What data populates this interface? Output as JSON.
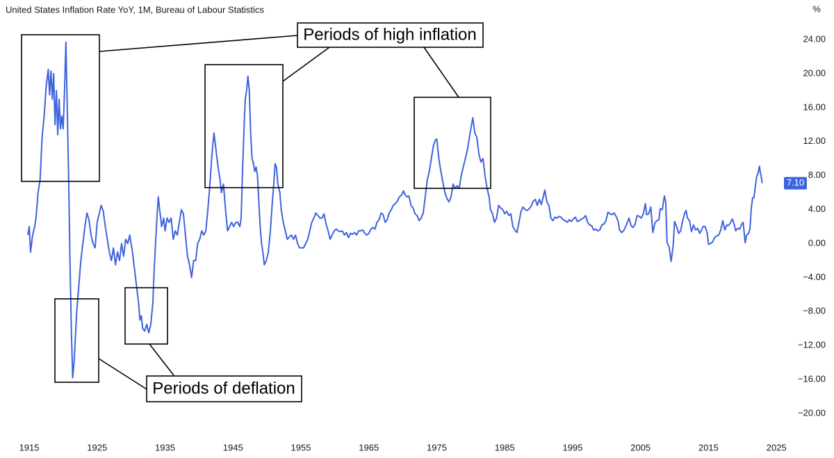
{
  "chart_data": {
    "type": "line",
    "title": "United States Inflation Rate YoY, 1M, Bureau of Labour Statistics",
    "y_unit": "%",
    "color": "#3d63dd",
    "grid": false,
    "xlim": [
      1910.7,
      2025.8
    ],
    "xticks": [
      1915,
      1925,
      1935,
      1945,
      1955,
      1965,
      1975,
      1985,
      1995,
      2005,
      2015,
      2025
    ],
    "ylim": [
      -22.45,
      28.66
    ],
    "yticks": [
      {
        "value": 24,
        "label": "24.00"
      },
      {
        "value": 20,
        "label": "20.00"
      },
      {
        "value": 16,
        "label": "16.00"
      },
      {
        "value": 12,
        "label": "12.00"
      },
      {
        "value": 8,
        "label": "8.00"
      },
      {
        "value": 4,
        "label": "4.00"
      },
      {
        "value": 0,
        "label": "0.00"
      },
      {
        "value": -4,
        "label": "−4.00"
      },
      {
        "value": -8,
        "label": "−8.00"
      },
      {
        "value": -12,
        "label": "−12.00"
      },
      {
        "value": -16,
        "label": "−16.00"
      },
      {
        "value": -20,
        "label": "−20.00"
      }
    ],
    "last_value_label": "7.10",
    "annotations": [
      "Periods of high inflation",
      "Periods of deflation"
    ],
    "x": [
      1914.8,
      1915.0,
      1915.2,
      1915.5,
      1915.8,
      1916.0,
      1916.3,
      1916.6,
      1916.9,
      1917.2,
      1917.5,
      1917.8,
      1918.0,
      1918.2,
      1918.4,
      1918.6,
      1918.8,
      1919.0,
      1919.2,
      1919.4,
      1919.6,
      1919.8,
      1920.0,
      1920.2,
      1920.4,
      1920.6,
      1920.8,
      1921.0,
      1921.2,
      1921.4,
      1921.6,
      1921.8,
      1922.0,
      1922.3,
      1922.6,
      1922.9,
      1923.2,
      1923.5,
      1923.8,
      1924.1,
      1924.4,
      1924.7,
      1925.0,
      1925.3,
      1925.6,
      1925.9,
      1926.2,
      1926.5,
      1926.8,
      1927.1,
      1927.4,
      1927.7,
      1928.0,
      1928.3,
      1928.6,
      1928.9,
      1929.2,
      1929.5,
      1929.8,
      1930.0,
      1930.2,
      1930.5,
      1930.8,
      1931.1,
      1931.3,
      1931.5,
      1931.7,
      1932.0,
      1932.3,
      1932.6,
      1932.9,
      1933.2,
      1933.4,
      1933.6,
      1933.8,
      1934.0,
      1934.2,
      1934.5,
      1934.8,
      1935.0,
      1935.3,
      1935.6,
      1935.9,
      1936.2,
      1936.5,
      1936.8,
      1937.1,
      1937.4,
      1937.7,
      1938.0,
      1938.3,
      1938.6,
      1938.9,
      1939.2,
      1939.5,
      1939.8,
      1940.1,
      1940.4,
      1940.7,
      1941.0,
      1941.3,
      1941.6,
      1941.9,
      1942.2,
      1942.5,
      1942.8,
      1943.1,
      1943.3,
      1943.6,
      1943.9,
      1944.2,
      1944.5,
      1944.8,
      1945.1,
      1945.4,
      1945.7,
      1946.0,
      1946.2,
      1946.4,
      1946.6,
      1946.8,
      1947.0,
      1947.2,
      1947.4,
      1947.6,
      1947.8,
      1948.0,
      1948.2,
      1948.4,
      1948.6,
      1948.8,
      1949.0,
      1949.2,
      1949.4,
      1949.6,
      1949.9,
      1950.2,
      1950.5,
      1950.8,
      1951.0,
      1951.2,
      1951.4,
      1951.6,
      1951.9,
      1952.1,
      1952.4,
      1952.7,
      1953.0,
      1953.3,
      1953.6,
      1953.9,
      1954.2,
      1954.5,
      1954.8,
      1955.1,
      1955.4,
      1955.7,
      1956.0,
      1956.3,
      1956.6,
      1956.9,
      1957.2,
      1957.5,
      1957.8,
      1958.1,
      1958.4,
      1958.7,
      1959.0,
      1959.3,
      1959.6,
      1959.9,
      1960.2,
      1960.5,
      1960.8,
      1961.1,
      1961.4,
      1961.7,
      1962.0,
      1962.3,
      1962.6,
      1962.9,
      1963.2,
      1963.5,
      1963.8,
      1964.1,
      1964.4,
      1964.7,
      1965.0,
      1965.3,
      1965.6,
      1965.9,
      1966.2,
      1966.5,
      1966.8,
      1967.1,
      1967.4,
      1967.7,
      1968.0,
      1968.3,
      1968.6,
      1968.9,
      1969.2,
      1969.5,
      1969.8,
      1970.1,
      1970.3,
      1970.6,
      1970.9,
      1971.2,
      1971.5,
      1971.8,
      1972.1,
      1972.4,
      1972.7,
      1973.0,
      1973.3,
      1973.6,
      1973.9,
      1974.2,
      1974.5,
      1974.8,
      1975.0,
      1975.3,
      1975.6,
      1975.9,
      1976.2,
      1976.5,
      1976.8,
      1977.1,
      1977.4,
      1977.7,
      1978.0,
      1978.3,
      1978.6,
      1978.9,
      1979.2,
      1979.5,
      1979.8,
      1980.1,
      1980.3,
      1980.6,
      1980.9,
      1981.2,
      1981.5,
      1981.8,
      1982.1,
      1982.4,
      1982.7,
      1982.9,
      1983.2,
      1983.5,
      1983.8,
      1984.1,
      1984.4,
      1984.7,
      1985.0,
      1985.3,
      1985.6,
      1985.9,
      1986.2,
      1986.5,
      1986.8,
      1987.1,
      1987.4,
      1987.7,
      1988.0,
      1988.3,
      1988.6,
      1988.9,
      1989.2,
      1989.5,
      1989.8,
      1990.1,
      1990.4,
      1990.7,
      1990.9,
      1991.2,
      1991.5,
      1991.8,
      1992.1,
      1992.4,
      1992.7,
      1993.0,
      1993.3,
      1993.6,
      1993.9,
      1994.2,
      1994.5,
      1994.8,
      1995.1,
      1995.4,
      1995.7,
      1996.0,
      1996.3,
      1996.6,
      1996.9,
      1997.2,
      1997.5,
      1997.8,
      1998.1,
      1998.4,
      1998.7,
      1999.0,
      1999.3,
      1999.6,
      1999.9,
      2000.2,
      2000.5,
      2000.8,
      2001.1,
      2001.4,
      2001.7,
      2001.9,
      2002.2,
      2002.5,
      2002.8,
      2003.1,
      2003.3,
      2003.6,
      2003.9,
      2004.2,
      2004.5,
      2004.8,
      2005.1,
      2005.4,
      2005.7,
      2005.9,
      2006.2,
      2006.5,
      2006.8,
      2007.1,
      2007.4,
      2007.7,
      2007.9,
      2008.2,
      2008.5,
      2008.7,
      2008.9,
      2009.2,
      2009.5,
      2009.8,
      2010.0,
      2010.3,
      2010.6,
      2010.9,
      2011.2,
      2011.5,
      2011.7,
      2011.9,
      2012.2,
      2012.5,
      2012.8,
      2013.1,
      2013.4,
      2013.7,
      2013.9,
      2014.2,
      2014.5,
      2014.8,
      2015.0,
      2015.3,
      2015.6,
      2015.9,
      2016.2,
      2016.5,
      2016.8,
      2017.1,
      2017.4,
      2017.7,
      2017.9,
      2018.2,
      2018.5,
      2018.8,
      2019.0,
      2019.3,
      2019.6,
      2019.9,
      2020.1,
      2020.4,
      2020.6,
      2020.9,
      2021.1,
      2021.3,
      2021.5,
      2021.7,
      2021.9,
      2022.1,
      2022.3,
      2022.5,
      2022.6,
      2022.8,
      2022.9
    ],
    "values": [
      1.0,
      2.0,
      -1.0,
      1.0,
      2.0,
      3.0,
      6.0,
      7.5,
      12.5,
      15.0,
      18.5,
      20.5,
      17.5,
      20.3,
      17.0,
      20.0,
      14.0,
      18.0,
      12.8,
      17.0,
      13.5,
      15.0,
      13.5,
      18.0,
      23.7,
      16.0,
      8.0,
      -2.0,
      -10.0,
      -15.8,
      -14.0,
      -11.0,
      -8.0,
      -5.0,
      -2.0,
      0.0,
      2.0,
      3.6,
      2.8,
      1.0,
      0.0,
      -0.5,
      2.5,
      3.5,
      4.5,
      3.8,
      2.0,
      0.5,
      -1.0,
      -2.0,
      -0.5,
      -2.5,
      -1.0,
      -2.0,
      0.0,
      -1.5,
      0.5,
      0.0,
      1.0,
      0.0,
      -1.0,
      -3.0,
      -5.0,
      -7.0,
      -9.0,
      -8.5,
      -10.0,
      -10.3,
      -9.5,
      -10.5,
      -9.5,
      -7.0,
      -3.0,
      0.0,
      3.0,
      5.5,
      4.0,
      2.0,
      3.0,
      1.5,
      3.0,
      2.5,
      3.0,
      0.5,
      1.5,
      1.0,
      2.5,
      4.0,
      3.5,
      1.0,
      -1.5,
      -2.5,
      -4.0,
      -2.0,
      -2.0,
      0.0,
      0.5,
      1.5,
      1.0,
      1.5,
      4.0,
      7.0,
      10.5,
      13.0,
      11.0,
      9.0,
      7.5,
      6.0,
      7.0,
      4.0,
      1.5,
      2.0,
      2.5,
      2.0,
      2.5,
      2.5,
      2.0,
      3.0,
      8.5,
      13.0,
      17.0,
      18.0,
      19.7,
      18.0,
      13.0,
      10.0,
      9.5,
      8.5,
      9.0,
      8.0,
      5.0,
      2.0,
      0.0,
      -1.0,
      -2.5,
      -2.0,
      -1.0,
      1.5,
      5.0,
      7.0,
      9.4,
      9.0,
      7.0,
      6.0,
      4.0,
      2.5,
      1.5,
      0.5,
      0.8,
      1.0,
      0.5,
      1.0,
      0.0,
      -0.5,
      -0.5,
      -0.5,
      0.0,
      0.5,
      1.5,
      2.5,
      3.0,
      3.6,
      3.3,
      3.0,
      3.0,
      3.5,
      2.3,
      1.5,
      0.5,
      1.0,
      1.5,
      1.7,
      1.5,
      1.4,
      1.5,
      1.0,
      1.3,
      0.7,
      1.2,
      1.1,
      1.3,
      1.0,
      1.5,
      1.5,
      1.6,
      1.2,
      1.0,
      1.2,
      1.7,
      1.9,
      1.7,
      2.5,
      2.8,
      3.6,
      3.4,
      2.5,
      2.8,
      3.6,
      4.0,
      4.5,
      4.7,
      5.0,
      5.5,
      5.7,
      6.2,
      5.8,
      5.5,
      5.6,
      4.5,
      4.2,
      3.5,
      3.3,
      2.7,
      3.0,
      3.6,
      5.5,
      7.5,
      8.5,
      10.0,
      11.5,
      12.2,
      12.3,
      10.0,
      8.5,
      7.2,
      6.0,
      5.3,
      4.9,
      5.5,
      7.0,
      6.5,
      6.8,
      6.5,
      8.0,
      9.0,
      10.0,
      11.0,
      12.5,
      13.9,
      14.8,
      13.0,
      12.5,
      10.5,
      9.6,
      10.0,
      8.0,
      6.5,
      5.5,
      4.0,
      3.5,
      2.5,
      3.0,
      4.5,
      4.2,
      4.0,
      3.5,
      3.8,
      3.3,
      3.5,
      2.0,
      1.6,
      1.3,
      2.5,
      3.8,
      4.3,
      4.0,
      3.9,
      4.1,
      4.4,
      5.0,
      5.2,
      4.5,
      5.2,
      4.6,
      5.6,
      6.3,
      4.9,
      4.5,
      3.0,
      2.7,
      3.1,
      3.0,
      3.2,
      3.1,
      2.8,
      2.7,
      2.5,
      2.8,
      2.6,
      2.9,
      3.1,
      2.6,
      2.7,
      2.9,
      3.0,
      3.3,
      2.5,
      2.2,
      2.1,
      1.6,
      1.7,
      1.5,
      1.6,
      2.2,
      2.3,
      2.7,
      3.7,
      3.5,
      3.4,
      3.6,
      3.2,
      2.6,
      1.6,
      1.3,
      1.5,
      2.0,
      2.6,
      3.0,
      2.1,
      1.9,
      2.3,
      3.3,
      3.2,
      3.0,
      3.5,
      4.7,
      3.4,
      3.5,
      4.3,
      1.3,
      2.4,
      2.7,
      2.8,
      4.1,
      4.0,
      5.6,
      4.9,
      0.1,
      -0.4,
      -2.1,
      -0.2,
      2.6,
      2.0,
      1.2,
      1.5,
      2.7,
      3.6,
      3.9,
      3.0,
      2.7,
      1.4,
      2.2,
      1.6,
      1.8,
      1.2,
      1.5,
      2.0,
      2.0,
      1.3,
      -0.1,
      0.0,
      0.2,
      0.7,
      0.9,
      1.0,
      1.6,
      2.7,
      1.6,
      2.2,
      2.1,
      2.4,
      2.9,
      2.2,
      1.5,
      1.8,
      1.7,
      2.3,
      2.5,
      0.1,
      1.0,
      1.2,
      1.7,
      4.2,
      5.4,
      5.4,
      6.8,
      7.9,
      8.3,
      9.1,
      8.5,
      7.7,
      7.1
    ]
  }
}
